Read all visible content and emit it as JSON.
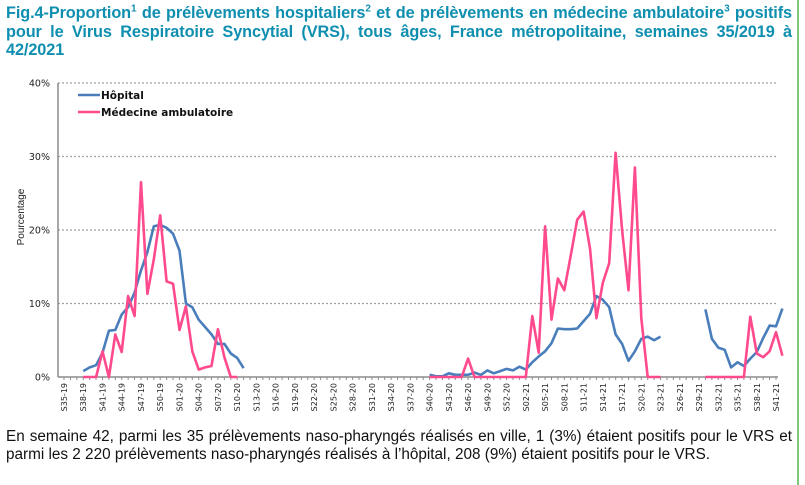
{
  "title": {
    "part1": "Fig.4-Proportion",
    "sup1": "1",
    "part2": " de prélèvements hospitaliers",
    "sup2": "2",
    "part3": " et de prélèvements en médecine ambulatoire",
    "sup3": "3",
    "part4": " positifs pour le Virus Respiratoire Syncytial (VRS), tous âges, France métropolitaine, semaines 35/2019 à 42/2021"
  },
  "caption": "En semaine 42, parmi les 35 prélèvements naso-pharyngés réalisés en ville, 1 (3%) étaient positifs pour le VRS et parmi les 2 220 prélèvements naso-pharyngés réalisés à l’hôpital, 208 (9%) étaient positifs pour le VRS.",
  "colors": {
    "hospital": "#4a7ebb",
    "ambulatory": "#ff4a8d",
    "title": "#0f8fb0",
    "grid": "#a0a0a0",
    "axis": "#8c8c8c"
  },
  "chart_data": {
    "type": "line",
    "title": "",
    "xlabel": "",
    "ylabel": "Pourcentage",
    "ylim": [
      0,
      40
    ],
    "yticks": [
      "0%",
      "10%",
      "20%",
      "30%",
      "40%"
    ],
    "grid": true,
    "legend_position": "top-left",
    "x_start": "S35-19",
    "x_end": "S41-21",
    "n_weeks": 112,
    "tick_every": 3,
    "tick_labels": [
      "S35-19",
      "S38-19",
      "S41-19",
      "S44-19",
      "S47-19",
      "S50-19",
      "S01-20",
      "S04-20",
      "S07-20",
      "S10-20",
      "S13-20",
      "S16-20",
      "S19-20",
      "S22-20",
      "S25-20",
      "S28-20",
      "S31-20",
      "S34-20",
      "S37-20",
      "S40-20",
      "S43-20",
      "S46-20",
      "S49-20",
      "S52-20",
      "S02-21",
      "S05-21",
      "S08-21",
      "S11-21",
      "S14-21",
      "S17-21",
      "S20-21",
      "S23-21",
      "S26-21",
      "S29-21",
      "S32-21",
      "S35-21",
      "S38-21",
      "S41-21"
    ],
    "series": [
      {
        "name": "Hôpital",
        "color": "#4a7ebb",
        "start_index": 3,
        "values": [
          0.8,
          1.3,
          1.6,
          3.3,
          6.3,
          6.4,
          8.5,
          9.5,
          11.5,
          14.5,
          17,
          20.5,
          20.7,
          20.3,
          19.5,
          17.2,
          10,
          9.5,
          7.8,
          6.8,
          5.8,
          4.5,
          4.5,
          3.2,
          2.6,
          1.2,
          null,
          null,
          null,
          null,
          null,
          null,
          null,
          null,
          null,
          null,
          null,
          null,
          null,
          null,
          null,
          null,
          null,
          null,
          null,
          null,
          null,
          null,
          null,
          null,
          null,
          null,
          null,
          null,
          0.3,
          0.1,
          0.1,
          0.5,
          0.3,
          0.3,
          0.3,
          0.6,
          0.3,
          0.9,
          0.5,
          0.8,
          1.1,
          0.9,
          1.4,
          1.0,
          2.0,
          2.8,
          3.5,
          4.6,
          6.6,
          6.5,
          6.5,
          6.6,
          7.6,
          8.6,
          11,
          10.5,
          9.5,
          5.8,
          4.5,
          2.2,
          3.5,
          5.2,
          5.5,
          5.0,
          5.5,
          null,
          null,
          null,
          null,
          null,
          null,
          9.2,
          5.2,
          4.0,
          3.7,
          1.3,
          2.0,
          1.5,
          2.5,
          3.4,
          5.3,
          7.0,
          6.9,
          9.3
        ]
      },
      {
        "name": "Médecine ambulatoire",
        "color": "#ff4a8d",
        "start_index": 3,
        "values": [
          0,
          0,
          0,
          3.5,
          0,
          5.8,
          3.4,
          11,
          8.3,
          26.5,
          11.3,
          16,
          22,
          13,
          12.7,
          6.4,
          9.6,
          3.5,
          1,
          1.3,
          1.5,
          6.5,
          2.7,
          0,
          0,
          null,
          null,
          null,
          null,
          null,
          null,
          null,
          null,
          null,
          null,
          null,
          null,
          null,
          null,
          null,
          null,
          null,
          null,
          null,
          null,
          null,
          null,
          null,
          null,
          null,
          null,
          null,
          null,
          null,
          0,
          0,
          0,
          0,
          0,
          0,
          2.5,
          0,
          0,
          0,
          0,
          0,
          0,
          0,
          0,
          0,
          8.3,
          3.3,
          20.5,
          7.8,
          13.4,
          11.8,
          16.5,
          21.4,
          22.5,
          17.5,
          8,
          12.8,
          15.5,
          30.5,
          20,
          11.8,
          28.5,
          8,
          0,
          0,
          0,
          null,
          null,
          null,
          null,
          null,
          null,
          0,
          0,
          0,
          0,
          0,
          0,
          0,
          8.2,
          3.2,
          2.7,
          3.5,
          6.1,
          2.9
        ]
      }
    ]
  }
}
